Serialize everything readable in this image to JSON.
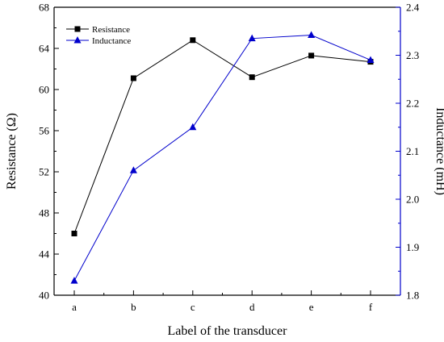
{
  "chart_data": {
    "type": "line",
    "xlabel": "Label of the transducer",
    "ylabel_left": "Resistance (Ω)",
    "ylabel_right": "Inductance (mH)",
    "categories": [
      "a",
      "b",
      "c",
      "d",
      "e",
      "f"
    ],
    "y_left": {
      "lim": [
        40,
        68
      ],
      "ticks": [
        40,
        44,
        48,
        52,
        56,
        60,
        64,
        68
      ],
      "tick_labels": [
        "40",
        "44",
        "48",
        "52",
        "56",
        "60",
        "64",
        "68"
      ]
    },
    "y_right": {
      "lim": [
        1.8,
        2.4
      ],
      "ticks": [
        1.8,
        1.9,
        2.0,
        2.1,
        2.2,
        2.3,
        2.4
      ],
      "tick_labels": [
        "1.8",
        "1.9",
        "2.0",
        "2.1",
        "2.2",
        "2.3",
        "2.4"
      ]
    },
    "legend_position": "top-left",
    "series": [
      {
        "name": "Resistance",
        "axis": "left",
        "color": "#000000",
        "marker": "square",
        "values": [
          46.0,
          61.1,
          64.8,
          61.2,
          63.3,
          62.7
        ]
      },
      {
        "name": "Inductance",
        "axis": "right",
        "color": "#0000cc",
        "marker": "triangle",
        "values": [
          1.83,
          2.06,
          2.15,
          2.335,
          2.342,
          2.29
        ]
      }
    ]
  }
}
